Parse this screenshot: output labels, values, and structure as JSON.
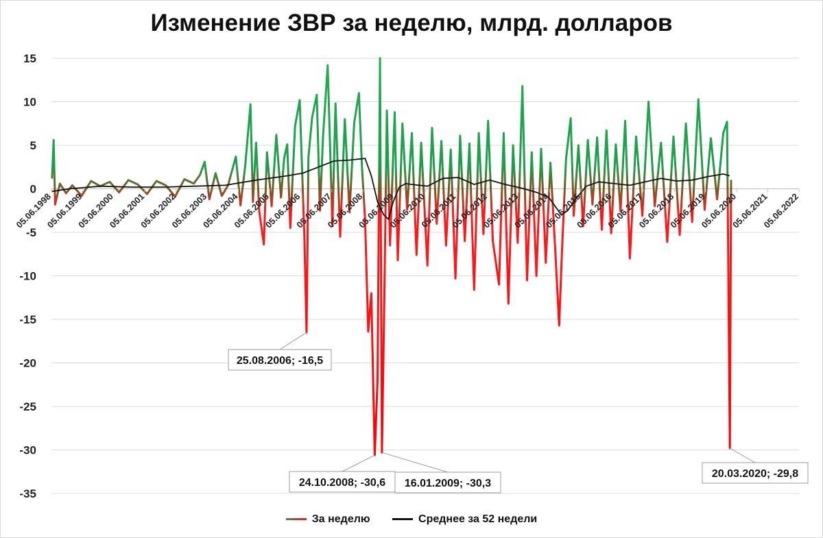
{
  "chart_data": {
    "type": "line",
    "title": "Изменение ЗВР за неделю, млрд. долларов",
    "ylim": [
      -35,
      15
    ],
    "y_ticks": [
      "15",
      "10",
      "5",
      "0",
      "-5",
      "-10",
      "-15",
      "-20",
      "-25",
      "-30",
      "-35"
    ],
    "x_ticks": [
      "05.06.1998",
      "05.06.1999",
      "05.06.2000",
      "05.06.2001",
      "05.06.2002",
      "05.06.2003",
      "05.06.2004",
      "05.06.2005",
      "05.06.2006",
      "05.06.2007",
      "05.06.2008",
      "05.06.2009",
      "05.06.2010",
      "05.06.2011",
      "05.06.2012",
      "05.06.2013",
      "05.06.2014",
      "05.06.2015",
      "05.06.2016",
      "05.06.2017",
      "05.06.2018",
      "05.06.2019",
      "05.06.2020",
      "05.06.2021",
      "05.06.2022"
    ],
    "xlim_years": [
      1998.43,
      2022.43
    ],
    "grid": true,
    "series": [
      {
        "name": "За неделю",
        "color_positive": "#1e9e4a",
        "color_negative": "#ff1a1a",
        "points": [
          [
            1998.45,
            1.2
          ],
          [
            1998.5,
            5.6
          ],
          [
            1998.55,
            -1.8
          ],
          [
            1998.7,
            0.6
          ],
          [
            1998.9,
            -0.5
          ],
          [
            1999.1,
            0.4
          ],
          [
            1999.4,
            -0.8
          ],
          [
            1999.7,
            0.9
          ],
          [
            2000.0,
            0.3
          ],
          [
            2000.3,
            0.8
          ],
          [
            2000.6,
            -0.4
          ],
          [
            2000.9,
            1.0
          ],
          [
            2001.2,
            0.5
          ],
          [
            2001.5,
            -0.6
          ],
          [
            2001.8,
            0.9
          ],
          [
            2002.1,
            0.4
          ],
          [
            2002.4,
            -0.9
          ],
          [
            2002.7,
            1.1
          ],
          [
            2003.0,
            0.6
          ],
          [
            2003.2,
            1.6
          ],
          [
            2003.35,
            3.1
          ],
          [
            2003.5,
            -1.2
          ],
          [
            2003.7,
            1.8
          ],
          [
            2003.9,
            -0.8
          ],
          [
            2004.1,
            0.4
          ],
          [
            2004.35,
            3.7
          ],
          [
            2004.5,
            -1.9
          ],
          [
            2004.65,
            2.6
          ],
          [
            2004.82,
            9.7
          ],
          [
            2004.9,
            -1.5
          ],
          [
            2005.0,
            5.3
          ],
          [
            2005.1,
            -2.5
          ],
          [
            2005.25,
            -6.4
          ],
          [
            2005.35,
            4.2
          ],
          [
            2005.5,
            -2.0
          ],
          [
            2005.65,
            6.2
          ],
          [
            2005.8,
            -1.0
          ],
          [
            2005.9,
            3.5
          ],
          [
            2006.0,
            5.1
          ],
          [
            2006.1,
            -4.5
          ],
          [
            2006.25,
            7.2
          ],
          [
            2006.4,
            10.2
          ],
          [
            2006.55,
            -5.5
          ],
          [
            2006.62,
            -16.5
          ],
          [
            2006.68,
            3.6
          ],
          [
            2006.8,
            8.2
          ],
          [
            2006.95,
            10.8
          ],
          [
            2007.05,
            -2.5
          ],
          [
            2007.15,
            6.0
          ],
          [
            2007.3,
            14.2
          ],
          [
            2007.45,
            -4.2
          ],
          [
            2007.55,
            9.8
          ],
          [
            2007.7,
            -5.5
          ],
          [
            2007.85,
            8.0
          ],
          [
            2008.0,
            -2.7
          ],
          [
            2008.15,
            7.6
          ],
          [
            2008.3,
            11.0
          ],
          [
            2008.4,
            2.5
          ],
          [
            2008.5,
            -3.5
          ],
          [
            2008.6,
            -16.4
          ],
          [
            2008.7,
            -12.0
          ],
          [
            2008.81,
            -30.6
          ],
          [
            2008.9,
            -21.9
          ],
          [
            2008.98,
            15.0
          ],
          [
            2009.04,
            -30.3
          ],
          [
            2009.12,
            -12.0
          ],
          [
            2009.2,
            9.0
          ],
          [
            2009.3,
            -6.5
          ],
          [
            2009.45,
            8.8
          ],
          [
            2009.55,
            -8.2
          ],
          [
            2009.7,
            7.5
          ],
          [
            2009.85,
            -2.4
          ],
          [
            2010.0,
            6.4
          ],
          [
            2010.15,
            -7.6
          ],
          [
            2010.3,
            5.3
          ],
          [
            2010.5,
            -8.8
          ],
          [
            2010.65,
            7.0
          ],
          [
            2010.8,
            -4.0
          ],
          [
            2010.95,
            5.5
          ],
          [
            2011.1,
            -6.5
          ],
          [
            2011.25,
            4.5
          ],
          [
            2011.4,
            -10.3
          ],
          [
            2011.55,
            6.1
          ],
          [
            2011.7,
            -6.0
          ],
          [
            2011.85,
            5.2
          ],
          [
            2012.0,
            -11.6
          ],
          [
            2012.15,
            6.4
          ],
          [
            2012.3,
            -5.2
          ],
          [
            2012.45,
            7.8
          ],
          [
            2012.6,
            -6.0
          ],
          [
            2012.8,
            -11.0
          ],
          [
            2012.95,
            6.4
          ],
          [
            2013.1,
            -13.2
          ],
          [
            2013.25,
            5.0
          ],
          [
            2013.4,
            -6.2
          ],
          [
            2013.55,
            11.8
          ],
          [
            2013.7,
            -10.5
          ],
          [
            2013.85,
            4.2
          ],
          [
            2014.0,
            -10.0
          ],
          [
            2014.15,
            4.6
          ],
          [
            2014.3,
            -8.5
          ],
          [
            2014.45,
            3.0
          ],
          [
            2014.6,
            -6.7
          ],
          [
            2014.73,
            -15.7
          ],
          [
            2014.82,
            -7.2
          ],
          [
            2014.95,
            3.4
          ],
          [
            2015.1,
            8.1
          ],
          [
            2015.2,
            -3.1
          ],
          [
            2015.35,
            5.0
          ],
          [
            2015.5,
            -4.3
          ],
          [
            2015.65,
            5.6
          ],
          [
            2015.8,
            -1.8
          ],
          [
            2015.95,
            5.9
          ],
          [
            2016.1,
            -4.7
          ],
          [
            2016.25,
            6.7
          ],
          [
            2016.4,
            -5.1
          ],
          [
            2016.55,
            5.1
          ],
          [
            2016.7,
            -2.6
          ],
          [
            2016.85,
            7.8
          ],
          [
            2017.0,
            -8.0
          ],
          [
            2017.2,
            6.0
          ],
          [
            2017.4,
            -3.1
          ],
          [
            2017.6,
            10.0
          ],
          [
            2017.8,
            -2.0
          ],
          [
            2018.0,
            5.3
          ],
          [
            2018.2,
            -6.1
          ],
          [
            2018.4,
            6.0
          ],
          [
            2018.6,
            -5.3
          ],
          [
            2018.8,
            7.5
          ],
          [
            2019.0,
            -3.8
          ],
          [
            2019.2,
            10.3
          ],
          [
            2019.4,
            -2.4
          ],
          [
            2019.6,
            5.8
          ],
          [
            2019.8,
            -1.2
          ],
          [
            2020.0,
            6.4
          ],
          [
            2020.12,
            7.7
          ],
          [
            2020.21,
            -29.8
          ],
          [
            2020.25,
            1.0
          ]
        ]
      },
      {
        "name": "Среднее за 52 недели",
        "color": "#111111",
        "points": [
          [
            1998.45,
            -0.3
          ],
          [
            1999.0,
            0.0
          ],
          [
            2000.0,
            0.3
          ],
          [
            2001.0,
            0.2
          ],
          [
            2002.0,
            0.2
          ],
          [
            2003.0,
            0.3
          ],
          [
            2004.0,
            0.4
          ],
          [
            2005.0,
            1.0
          ],
          [
            2006.0,
            1.5
          ],
          [
            2006.5,
            1.8
          ],
          [
            2007.0,
            2.5
          ],
          [
            2007.5,
            3.2
          ],
          [
            2008.0,
            3.3
          ],
          [
            2008.5,
            3.5
          ],
          [
            2008.7,
            1.5
          ],
          [
            2008.9,
            -1.5
          ],
          [
            2009.1,
            -3.0
          ],
          [
            2009.25,
            -3.5
          ],
          [
            2009.4,
            -1.5
          ],
          [
            2009.6,
            0.2
          ],
          [
            2009.8,
            0.6
          ],
          [
            2010.0,
            0.5
          ],
          [
            2010.5,
            0.3
          ],
          [
            2011.0,
            1.2
          ],
          [
            2011.5,
            1.3
          ],
          [
            2012.0,
            0.5
          ],
          [
            2012.5,
            1.0
          ],
          [
            2013.0,
            0.5
          ],
          [
            2013.5,
            0.1
          ],
          [
            2014.0,
            -0.4
          ],
          [
            2014.4,
            -1.0
          ],
          [
            2014.6,
            -2.0
          ],
          [
            2014.8,
            -3.0
          ],
          [
            2015.0,
            -2.5
          ],
          [
            2015.3,
            -1.0
          ],
          [
            2015.6,
            0.3
          ],
          [
            2016.0,
            0.8
          ],
          [
            2016.5,
            0.6
          ],
          [
            2017.0,
            0.4
          ],
          [
            2017.5,
            0.8
          ],
          [
            2018.0,
            1.2
          ],
          [
            2018.5,
            0.9
          ],
          [
            2019.0,
            1.0
          ],
          [
            2019.5,
            1.4
          ],
          [
            2020.0,
            1.7
          ],
          [
            2020.2,
            1.5
          ]
        ]
      }
    ],
    "annotations": [
      {
        "label": "25.08.2006; -16,5",
        "x": 2006.62,
        "y": -16.5
      },
      {
        "label": "24.10.2008; -30,6",
        "x": 2008.81,
        "y": -30.6
      },
      {
        "label": "16.01.2009; -30,3",
        "x": 2009.04,
        "y": -30.3
      },
      {
        "label": "20.03.2020; -29,8",
        "x": 2020.21,
        "y": -29.8
      }
    ]
  }
}
